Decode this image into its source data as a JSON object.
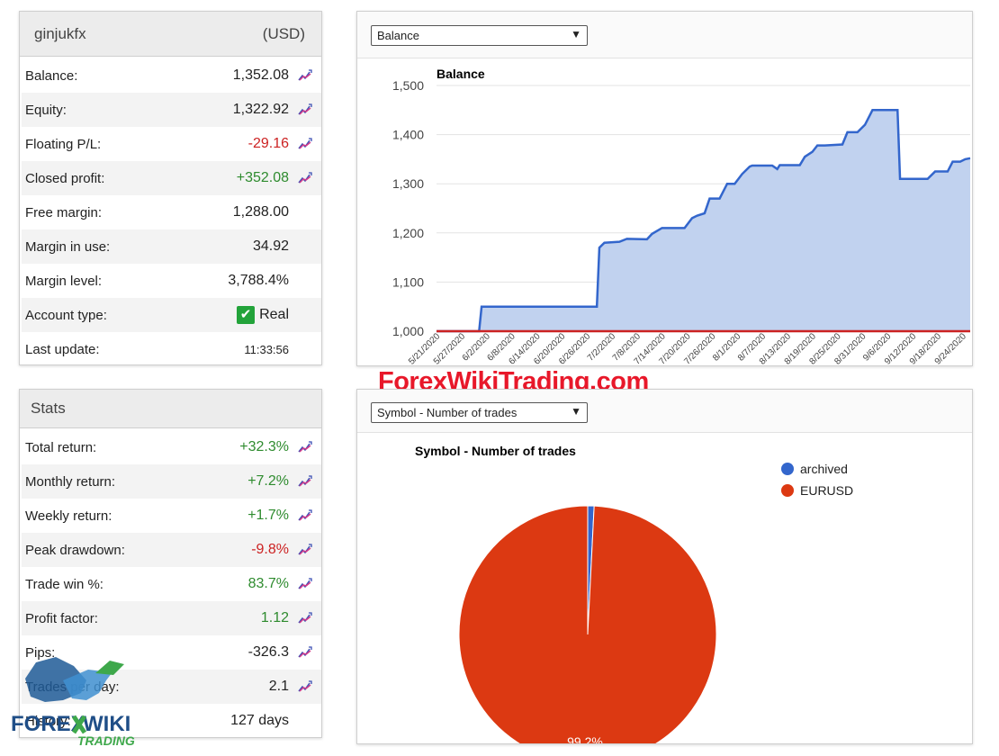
{
  "account": {
    "name": "ginjukfx",
    "currency": "(USD)",
    "rows": [
      {
        "label": "Balance:",
        "value": "1,352.08",
        "color": "#222",
        "icon": true
      },
      {
        "label": "Equity:",
        "value": "1,322.92",
        "color": "#222",
        "icon": true
      },
      {
        "label": "Floating P/L:",
        "value": "-29.16",
        "color": "#cc2222",
        "icon": true
      },
      {
        "label": "Closed profit:",
        "value": "+352.08",
        "color": "#2e8b2e",
        "icon": true
      },
      {
        "label": "Free margin:",
        "value": "1,288.00",
        "color": "#222",
        "icon": false
      },
      {
        "label": "Margin in use:",
        "value": "34.92",
        "color": "#222",
        "icon": false
      },
      {
        "label": "Margin level:",
        "value": "3,788.4%",
        "color": "#222",
        "icon": false
      },
      {
        "label": "Account type:",
        "value": "Real",
        "color": "#222",
        "icon": false,
        "check": true
      },
      {
        "label": "Last update:",
        "value": "11:33:56",
        "color": "#222",
        "icon": false,
        "small": true
      }
    ]
  },
  "stats": {
    "title": "Stats",
    "rows": [
      {
        "label": "Total return:",
        "value": "+32.3%",
        "color": "#2e8b2e",
        "icon": true
      },
      {
        "label": "Monthly return:",
        "value": "+7.2%",
        "color": "#2e8b2e",
        "icon": true
      },
      {
        "label": "Weekly return:",
        "value": "+1.7%",
        "color": "#2e8b2e",
        "icon": true
      },
      {
        "label": "Peak drawdown:",
        "value": "-9.8%",
        "color": "#cc2222",
        "icon": true
      },
      {
        "label": "Trade win %:",
        "value": "83.7%",
        "color": "#2e8b2e",
        "icon": true
      },
      {
        "label": "Profit factor:",
        "value": "1.12",
        "color": "#2e8b2e",
        "icon": true
      },
      {
        "label": "Pips:",
        "value": "-326.3",
        "color": "#222",
        "icon": true
      },
      {
        "label": "Trades per day:",
        "value": "2.1",
        "color": "#222",
        "icon": true
      },
      {
        "label": "History:",
        "value": "127 days",
        "color": "#222",
        "icon": false
      }
    ]
  },
  "balance_panel": {
    "select_value": "Balance",
    "chart_title": "Balance"
  },
  "pie_panel": {
    "select_value": "Symbol - Number of trades",
    "chart_title": "Symbol - Number of trades",
    "legend": [
      {
        "label": "archived",
        "color": "#3366cc"
      },
      {
        "label": "EURUSD",
        "color": "#dc3912"
      }
    ],
    "slice_label": "99.2%"
  },
  "watermark": "ForexWikiTrading.com",
  "logo_text": {
    "brand": "FOREX WIKI",
    "sub": "TRADING"
  },
  "chart_data": [
    {
      "type": "area",
      "title": "Balance",
      "ylim": [
        1000,
        1500
      ],
      "yticks": [
        "1,000",
        "1,100",
        "1,200",
        "1,300",
        "1,400",
        "1,500"
      ],
      "x_ticks": [
        "5/21/2020",
        "5/27/2020",
        "6/2/2020",
        "6/8/2020",
        "6/14/2020",
        "6/20/2020",
        "6/26/2020",
        "7/2/2020",
        "7/8/2020",
        "7/14/2020",
        "7/20/2020",
        "7/26/2020",
        "8/1/2020",
        "8/7/2020",
        "8/13/2020",
        "8/19/2020",
        "8/25/2020",
        "8/31/2020",
        "9/6/2020",
        "9/12/2020",
        "9/18/2020",
        "9/24/2020"
      ],
      "series": [
        {
          "values": [
            [
              0,
              1000
            ],
            [
              1.7,
              1000
            ],
            [
              1.8,
              1050
            ],
            [
              6.4,
              1050
            ],
            [
              6.5,
              1170
            ],
            [
              6.7,
              1180
            ],
            [
              7.3,
              1182
            ],
            [
              7.6,
              1188
            ],
            [
              8.4,
              1187
            ],
            [
              8.6,
              1198
            ],
            [
              9,
              1210
            ],
            [
              9.9,
              1210
            ],
            [
              10.2,
              1230
            ],
            [
              10.4,
              1235
            ],
            [
              10.7,
              1240
            ],
            [
              10.9,
              1270
            ],
            [
              11.3,
              1270
            ],
            [
              11.6,
              1300
            ],
            [
              11.9,
              1300
            ],
            [
              12.2,
              1320
            ],
            [
              12.5,
              1335
            ],
            [
              12.6,
              1337
            ],
            [
              13.4,
              1337
            ],
            [
              13.6,
              1330
            ],
            [
              13.7,
              1338
            ],
            [
              14.5,
              1338
            ],
            [
              14.7,
              1355
            ],
            [
              15,
              1365
            ],
            [
              15.2,
              1378
            ],
            [
              15.5,
              1378
            ],
            [
              16.2,
              1380
            ],
            [
              16.4,
              1405
            ],
            [
              16.8,
              1405
            ],
            [
              17.1,
              1420
            ],
            [
              17.4,
              1450
            ],
            [
              18.4,
              1450
            ],
            [
              18.5,
              1310
            ],
            [
              19.6,
              1310
            ],
            [
              19.9,
              1325
            ],
            [
              20.4,
              1325
            ],
            [
              20.6,
              1345
            ],
            [
              20.9,
              1345
            ],
            [
              21.1,
              1350
            ],
            [
              21.3,
              1352
            ]
          ]
        },
        {
          "values": [
            [
              0,
              1000
            ],
            [
              21.3,
              1000
            ]
          ]
        }
      ]
    },
    {
      "type": "pie",
      "title": "Symbol - Number of trades",
      "categories": [
        "archived",
        "EURUSD"
      ],
      "values": [
        0.8,
        99.2
      ]
    }
  ]
}
